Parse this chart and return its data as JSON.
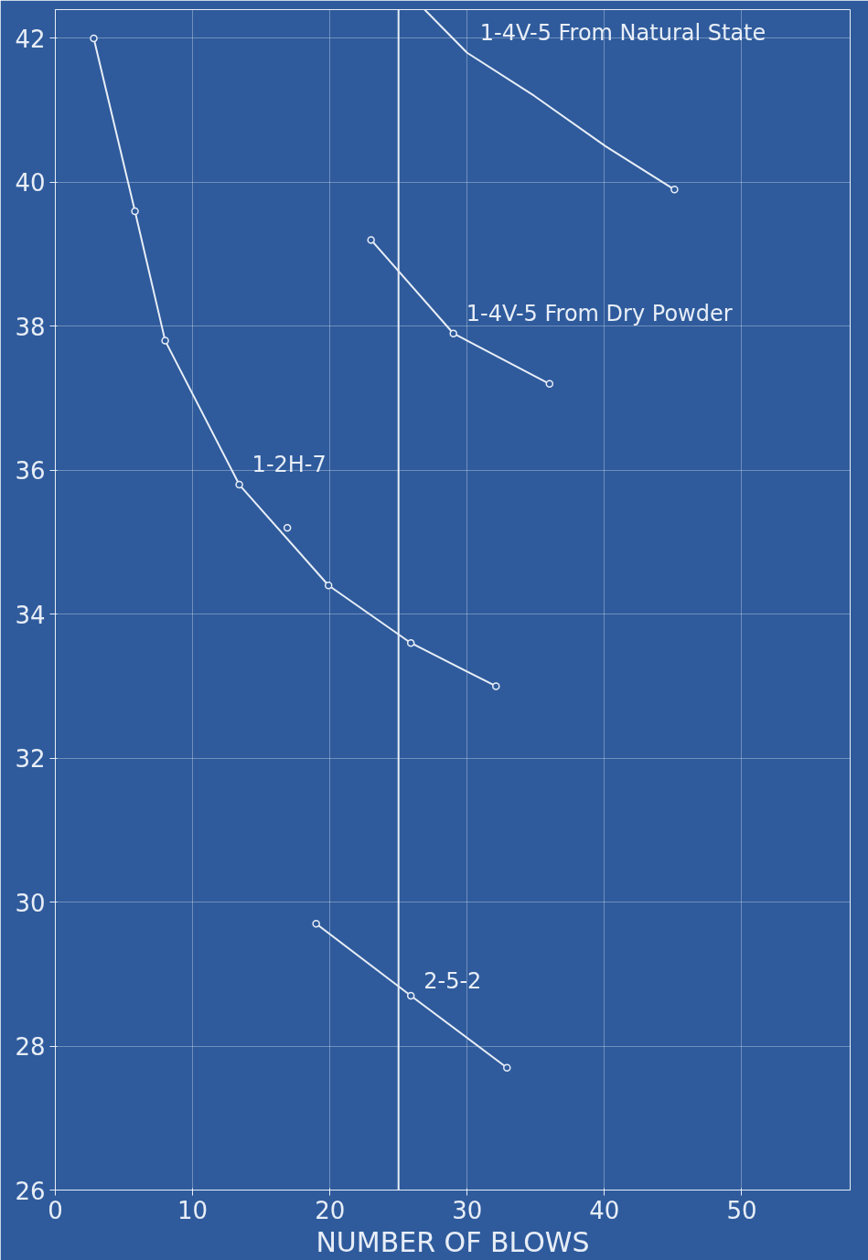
{
  "chart_data": {
    "type": "line",
    "xlabel": "NUMBER OF BLOWS",
    "xlim": [
      0,
      57.9
    ],
    "ylim": [
      26,
      42.4
    ],
    "xticks": [
      0,
      10,
      20,
      30,
      40,
      50
    ],
    "yticks": [
      26,
      28,
      30,
      32,
      34,
      36,
      38,
      40,
      42
    ],
    "grid": true,
    "marker": "circle",
    "line_style": "solid",
    "series": [
      {
        "color": "#e8eef7",
        "x": [
          2.8,
          5.8,
          8.0,
          13.4,
          19.9,
          25.9,
          32.1
        ],
        "values": [
          42.0,
          39.6,
          37.8,
          35.8,
          34.4,
          33.6,
          33.0
        ]
      },
      {
        "type": "scatter",
        "color": "#e8eef7",
        "x": [
          16.9
        ],
        "values": [
          35.2
        ]
      },
      {
        "color": "#e8eef7",
        "marker": "none",
        "x": [
          26.9,
          30.0,
          34.9,
          40.1,
          45.1
        ],
        "values": [
          42.4,
          41.8,
          41.2,
          40.5,
          39.9
        ]
      },
      {
        "type": "scatter",
        "color": "#e8eef7",
        "x": [
          45.1
        ],
        "values": [
          39.9
        ]
      },
      {
        "color": "#e8eef7",
        "x": [
          23.0,
          29.0,
          36.0
        ],
        "values": [
          39.2,
          37.9,
          37.2
        ]
      },
      {
        "color": "#e8eef7",
        "x": [
          19.0,
          25.9,
          32.9
        ],
        "values": [
          29.7,
          28.7,
          27.7
        ]
      }
    ],
    "ref_lines": [
      {
        "axis": "x",
        "value": 25,
        "color": "#e8eef7"
      }
    ],
    "annotations": [
      {
        "text": "1-4V-5  From Natural State",
        "x": 30.0,
        "y": 41.8
      },
      {
        "text": "1-4V-5  From Dry Powder",
        "x": 29.0,
        "y": 37.9
      },
      {
        "text": "1-2H-7",
        "x": 13.4,
        "y": 35.8
      },
      {
        "text": "2-5-2",
        "x": 25.9,
        "y": 28.7
      }
    ]
  }
}
